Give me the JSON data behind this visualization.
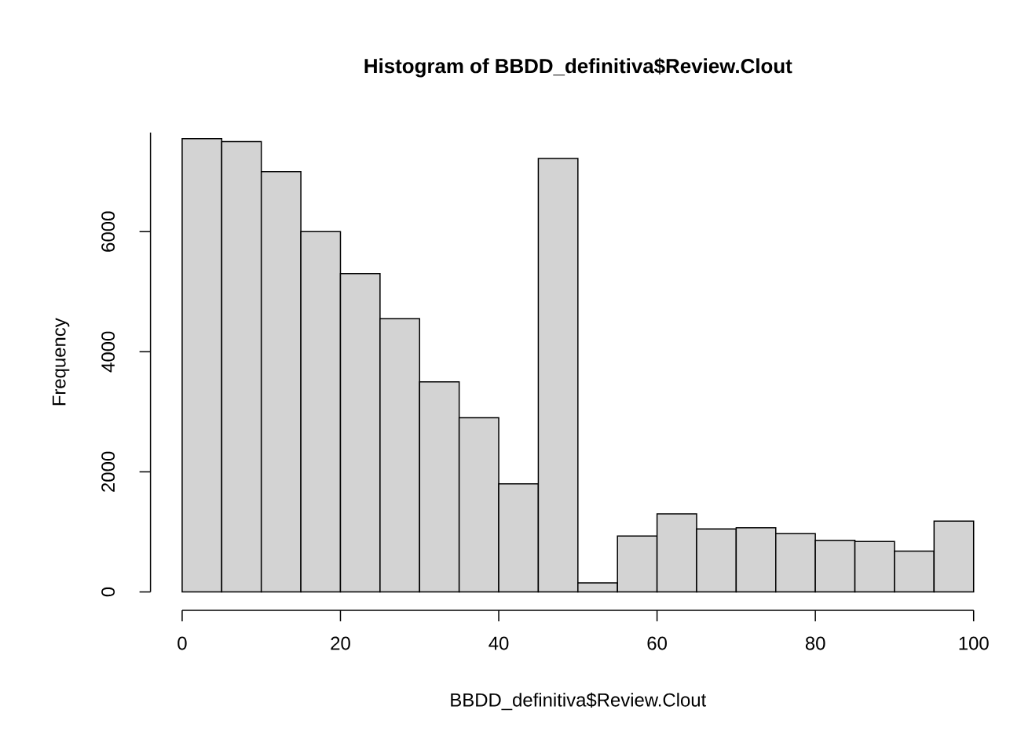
{
  "chart_data": {
    "type": "histogram",
    "title": "Histogram of BBDD_definitiva$Review.Clout",
    "xlabel": "BBDD_definitiva$Review.Clout",
    "ylabel": "Frequency",
    "bins": [
      0,
      5,
      10,
      15,
      20,
      25,
      30,
      35,
      40,
      45,
      50,
      55,
      60,
      65,
      70,
      75,
      80,
      85,
      90,
      95,
      100
    ],
    "values": [
      7550,
      7500,
      7000,
      6000,
      5300,
      4550,
      3500,
      2900,
      1800,
      7220,
      150,
      930,
      1300,
      1050,
      1070,
      970,
      860,
      840,
      680,
      1180
    ],
    "color": "#d3d3d3",
    "xlim": [
      0,
      100
    ],
    "xticks": [
      0,
      20,
      40,
      60,
      80,
      100
    ],
    "ylim": [
      0,
      7650
    ],
    "yticks": [
      0,
      2000,
      4000,
      6000
    ]
  }
}
